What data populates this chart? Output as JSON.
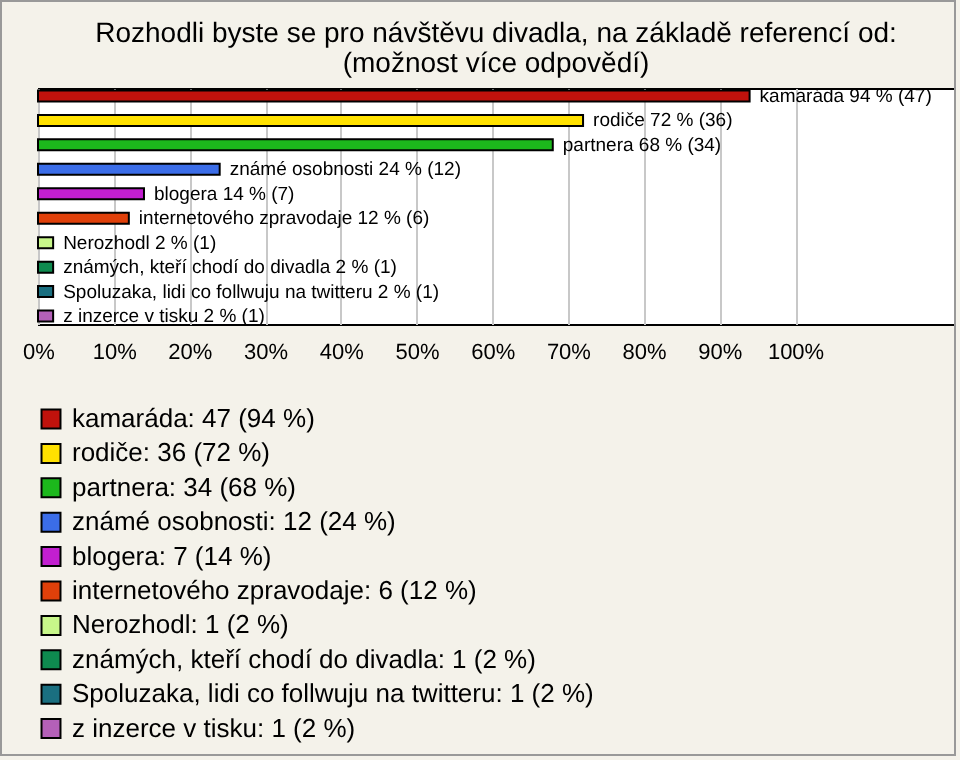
{
  "chart_data": {
    "type": "bar",
    "orientation": "horizontal",
    "title": "Rozhodli byste se pro návštěvu divadla, na základě referencí od:",
    "subtitle": "(možnost více odpovědí)",
    "categories": [
      null,
      null,
      null,
      null,
      null,
      null,
      null,
      null,
      null,
      null
    ],
    "xlim": [
      0,
      121
    ],
    "xticks": [
      {
        "value": 0,
        "label": "0%"
      },
      {
        "value": 10,
        "label": "10%"
      },
      {
        "value": 20,
        "label": "20%"
      },
      {
        "value": 30,
        "label": "30%"
      },
      {
        "value": 40,
        "label": "40%"
      },
      {
        "value": 50,
        "label": "50%"
      },
      {
        "value": 60,
        "label": "60%"
      },
      {
        "value": 70,
        "label": "70%"
      },
      {
        "value": 80,
        "label": "80%"
      },
      {
        "value": 90,
        "label": "90%"
      },
      {
        "value": 100,
        "label": "100%"
      }
    ],
    "grid": "x",
    "legend": "bottom",
    "tick_labels": "x",
    "series": [
      {
        "name": "kamaráda: 47 (94 %)",
        "color": "#c0120c",
        "values": [
          94,
          null,
          null,
          null,
          null,
          null,
          null,
          null,
          null,
          null
        ],
        "value_labels": [
          "kamaráda 94 % (47)",
          null,
          null,
          null,
          null,
          null,
          null,
          null,
          null,
          null
        ]
      },
      {
        "name": "rodiče: 36 (72 %)",
        "color": "#ffe100",
        "values": [
          null,
          72,
          null,
          null,
          null,
          null,
          null,
          null,
          null,
          null
        ],
        "value_labels": [
          null,
          "rodiče 72 % (36)",
          null,
          null,
          null,
          null,
          null,
          null,
          null,
          null
        ]
      },
      {
        "name": "partnera: 34 (68 %)",
        "color": "#1cb81c",
        "values": [
          null,
          null,
          68,
          null,
          null,
          null,
          null,
          null,
          null,
          null
        ],
        "value_labels": [
          null,
          null,
          "partnera 68 % (34)",
          null,
          null,
          null,
          null,
          null,
          null,
          null
        ]
      },
      {
        "name": "známé osobnosti: 12 (24 %)",
        "color": "#3b6de8",
        "values": [
          null,
          null,
          null,
          24,
          null,
          null,
          null,
          null,
          null,
          null
        ],
        "value_labels": [
          null,
          null,
          null,
          "známé osobnosti 24 % (12)",
          null,
          null,
          null,
          null,
          null,
          null
        ]
      },
      {
        "name": "blogera: 7 (14 %)",
        "color": "#c21fd0",
        "values": [
          null,
          null,
          null,
          null,
          14,
          null,
          null,
          null,
          null,
          null
        ],
        "value_labels": [
          null,
          null,
          null,
          null,
          "blogera 14 % (7)",
          null,
          null,
          null,
          null,
          null
        ]
      },
      {
        "name": "internetového zpravodaje: 6 (12 %)",
        "color": "#e0400a",
        "values": [
          null,
          null,
          null,
          null,
          null,
          12,
          null,
          null,
          null,
          null
        ],
        "value_labels": [
          null,
          null,
          null,
          null,
          null,
          "internetového zpravodaje 12 % (6)",
          null,
          null,
          null,
          null
        ]
      },
      {
        "name": "Nerozhodl: 1 (2 %)",
        "color": "#c8f78a",
        "values": [
          null,
          null,
          null,
          null,
          null,
          null,
          2,
          null,
          null,
          null
        ],
        "value_labels": [
          null,
          null,
          null,
          null,
          null,
          null,
          "Nerozhodl 2 % (1)",
          null,
          null,
          null
        ]
      },
      {
        "name": "známých, kteří chodí do divadla: 1 (2 %)",
        "color": "#0e8a4f",
        "values": [
          null,
          null,
          null,
          null,
          null,
          null,
          null,
          2,
          null,
          null
        ],
        "value_labels": [
          null,
          null,
          null,
          null,
          null,
          null,
          null,
          "známých, kteří chodí do divadla 2 % (1)",
          null,
          null
        ]
      },
      {
        "name": "Spoluzaka, lidi co follwuju na twitteru: 1 (2 %)",
        "color": "#1a6f80",
        "values": [
          null,
          null,
          null,
          null,
          null,
          null,
          null,
          null,
          2,
          null
        ],
        "value_labels": [
          null,
          null,
          null,
          null,
          null,
          null,
          null,
          null,
          "Spoluzaka, lidi co follwuju na twitteru 2 % (1)",
          null
        ]
      },
      {
        "name": "z inzerce v tisku: 1 (2 %)",
        "color": "#b460b8",
        "values": [
          null,
          null,
          null,
          null,
          null,
          null,
          null,
          null,
          null,
          2
        ],
        "value_labels": [
          null,
          null,
          null,
          null,
          null,
          null,
          null,
          null,
          null,
          "z inzerce v tisku 2 % (1)"
        ]
      }
    ]
  }
}
